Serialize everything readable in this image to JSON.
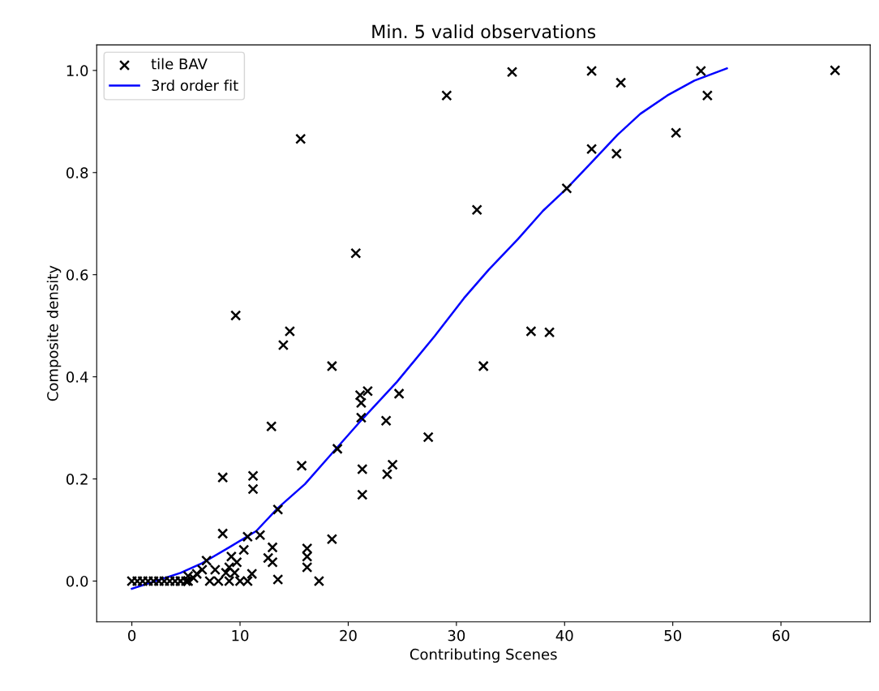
{
  "chart_data": {
    "type": "scatter",
    "title": "Min. 5 valid observations",
    "xlabel": "Contributing Scenes",
    "ylabel": "Composite density",
    "xlim": [
      -3.25,
      68.25
    ],
    "ylim": [
      -0.08,
      1.05
    ],
    "xticks": [
      0,
      10,
      20,
      30,
      40,
      50,
      60
    ],
    "yticks": [
      {
        "value": 0,
        "label": "0.0"
      },
      {
        "value": 0.2,
        "label": "0.2"
      },
      {
        "value": 0.4,
        "label": "0.4"
      },
      {
        "value": 0.6,
        "label": "0.6"
      },
      {
        "value": 0.8,
        "label": "0.8"
      },
      {
        "value": 1,
        "label": "1.0"
      }
    ],
    "grid": false,
    "legend": "top left",
    "series": [
      {
        "name": "tile BAV",
        "marker": "cross",
        "color": "#000000",
        "x": [
          35.15,
          42.5,
          45.2,
          52.6,
          65,
          29.1,
          53.2,
          15.6,
          50.3,
          42.5,
          44.8,
          40.2,
          31.9,
          20.7,
          9.6,
          14.6,
          14.0,
          36.9,
          38.6,
          18.5,
          32.5,
          21.8,
          21.1,
          21.2,
          24.7,
          21.2,
          23.5,
          12.9,
          27.4,
          19.0,
          8.4,
          11.2,
          11.2,
          15.7,
          13.5,
          21.3,
          23.6,
          24.1,
          21.3,
          18.5,
          8.4,
          10.7,
          11.85,
          13.0,
          12.6,
          13.0,
          16.2,
          16.2,
          16.2,
          17.3,
          13.5,
          11.1,
          10.35,
          9.2,
          6.9,
          6.5,
          8.7,
          9.5,
          9.0,
          10.0,
          10.7,
          8.0,
          7.2,
          5.7,
          5.2,
          4.5,
          9.7,
          9.0,
          7.7,
          6.0,
          5.2,
          0,
          0.5,
          1,
          1.5,
          2,
          2.5,
          3,
          3.5,
          4,
          4.5,
          5
        ],
        "values": [
          0.997,
          0.999,
          0.976,
          0.999,
          1.0,
          0.951,
          0.951,
          0.866,
          0.878,
          0.846,
          0.837,
          0.769,
          0.727,
          0.642,
          0.52,
          0.489,
          0.462,
          0.489,
          0.487,
          0.421,
          0.421,
          0.372,
          0.364,
          0.349,
          0.367,
          0.32,
          0.314,
          0.303,
          0.282,
          0.259,
          0.203,
          0.206,
          0.18,
          0.226,
          0.14,
          0.219,
          0.209,
          0.228,
          0.169,
          0.082,
          0.093,
          0.087,
          0.09,
          0.066,
          0.045,
          0.037,
          0.064,
          0.048,
          0.027,
          0.0,
          0.003,
          0.014,
          0.061,
          0.048,
          0.04,
          0.022,
          0.016,
          0.016,
          0.0,
          0.0,
          0.0,
          0.0,
          0.0,
          0.006,
          0.0,
          0.0,
          0.037,
          0.027,
          0.022,
          0.014,
          0.01,
          0.0,
          0.0,
          0.0,
          0.0,
          0.0,
          0.0,
          0.0,
          0.0,
          0.0,
          0.0,
          0.0
        ]
      },
      {
        "name": "3rd order fit",
        "type": "line",
        "line_style": "solid",
        "color": "#0000ff",
        "x": [
          0,
          4.5,
          6.5,
          9,
          11.5,
          13.5,
          16,
          18.5,
          21,
          24.5,
          28,
          30.7,
          33,
          35.7,
          38,
          40.2,
          42.5,
          44.9,
          47,
          49.5,
          52,
          55
        ],
        "values": [
          -0.015,
          0.016,
          0.035,
          0.066,
          0.098,
          0.143,
          0.19,
          0.25,
          0.31,
          0.39,
          0.48,
          0.554,
          0.61,
          0.67,
          0.725,
          0.769,
          0.82,
          0.874,
          0.915,
          0.951,
          0.98,
          1.004
        ]
      }
    ]
  }
}
